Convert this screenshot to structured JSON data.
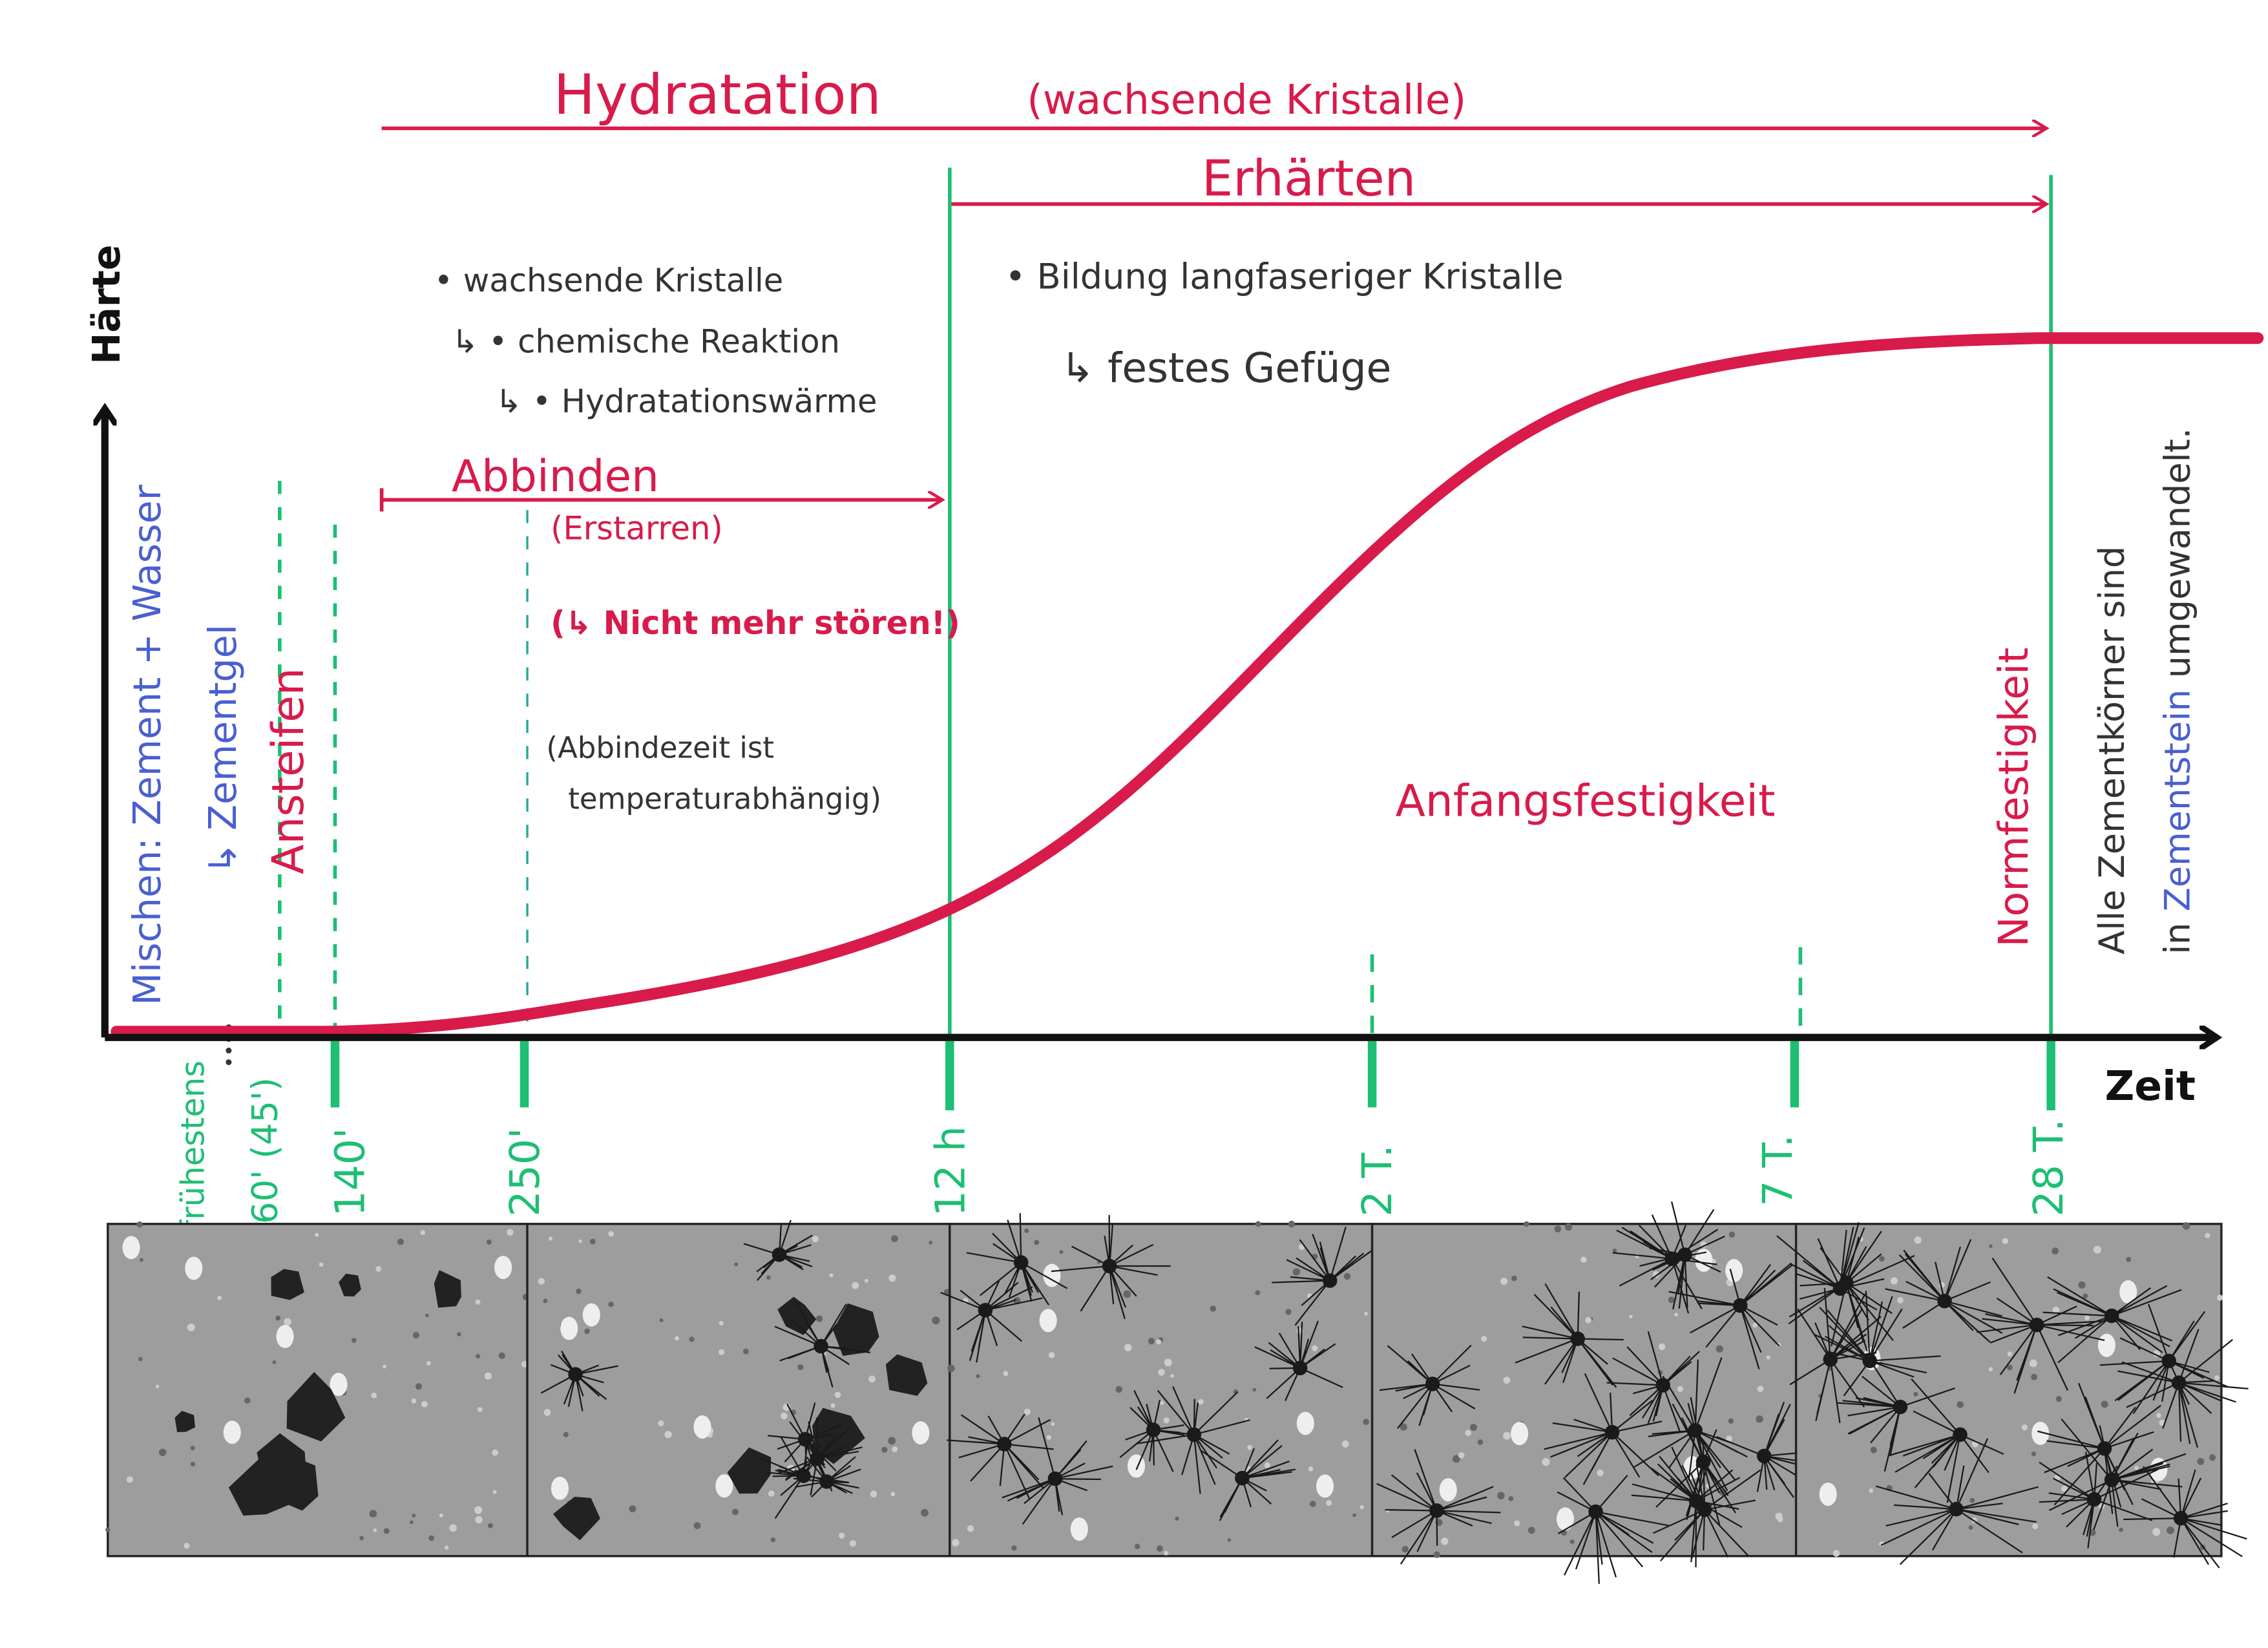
{
  "header": {
    "title": "Hydratation",
    "subtitle": "(wachsende Kristalle)",
    "phase": "Erhärten"
  },
  "axes": {
    "y_label": "Härte",
    "x_label": "Zeit"
  },
  "notes": {
    "left": [
      "• wachsende Kristalle",
      "↳ • chemische Reaktion",
      "↳ • Hydratationswärme"
    ],
    "right": [
      "• Bildung langfaseriger Kristalle",
      "↳ festes Gefüge"
    ],
    "abbinden": "Abbinden",
    "erstarren": "(Erstarren)",
    "warning": "(↳ Nicht mehr stören!)",
    "abbindezeit": [
      "(Abbindezeit ist",
      "temperaturabhängig)"
    ],
    "anfangsfestigkeit": "Anfangsfestigkeit",
    "normfestigkeit": "Normfestigkeit",
    "mischen": "Mischen: Zement + Wasser",
    "zementgel": "↳ Zementgel",
    "ansteifen": "Ansteifen",
    "final": [
      "Alle Zementkörner sind",
      "in",
      "Zementstein",
      "umgewandelt."
    ]
  },
  "time_labels": [
    "frühestens",
    "60' (45')",
    "140'",
    "250'",
    "12 h",
    "2 T.",
    "7 T.",
    "28 T."
  ]
}
